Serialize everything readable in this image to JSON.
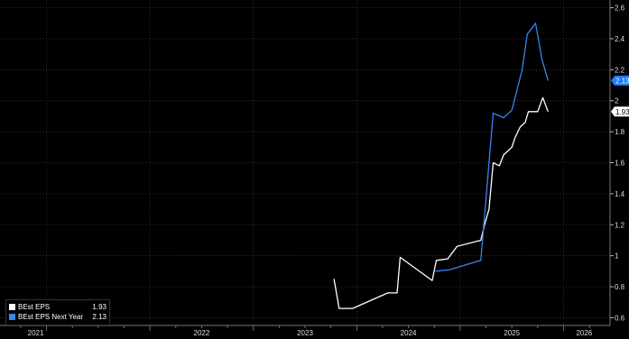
{
  "chart_data": {
    "type": "line",
    "title": "",
    "xlabel": "",
    "ylabel": "",
    "x_ticks": [
      "2021",
      "2022",
      "2023",
      "2024",
      "2025",
      "2026"
    ],
    "y_ticks": [
      "0.6",
      "0.8",
      "1",
      "1.2",
      "1.4",
      "1.6",
      "1.8",
      "2",
      "2.2",
      "2.4",
      "2.6"
    ],
    "ylim": [
      0.55,
      2.65
    ],
    "xlim": [
      2020.55,
      2026.45
    ],
    "grid": true,
    "legend_position": "bottom-left",
    "background": "#000000",
    "series": [
      {
        "name": "BEst EPS",
        "color": "#ffffff",
        "last_value": "1.93",
        "points": [
          [
            2023.78,
            0.85
          ],
          [
            2023.83,
            0.66
          ],
          [
            2023.96,
            0.66
          ],
          [
            2024.3,
            0.76
          ],
          [
            2024.39,
            0.76
          ],
          [
            2024.42,
            0.99
          ],
          [
            2024.73,
            0.84
          ],
          [
            2024.77,
            0.97
          ],
          [
            2024.88,
            0.98
          ],
          [
            2024.97,
            1.06
          ],
          [
            2025.2,
            1.1
          ],
          [
            2025.24,
            1.21
          ],
          [
            2025.28,
            1.3
          ],
          [
            2025.32,
            1.6
          ],
          [
            2025.38,
            1.58
          ],
          [
            2025.42,
            1.65
          ],
          [
            2025.5,
            1.7
          ],
          [
            2025.53,
            1.76
          ],
          [
            2025.58,
            1.83
          ],
          [
            2025.63,
            1.86
          ],
          [
            2025.66,
            1.93
          ],
          [
            2025.75,
            1.93
          ],
          [
            2025.8,
            2.02
          ],
          [
            2025.85,
            1.93
          ]
        ]
      },
      {
        "name": "BEst EPS Next Year",
        "color": "#3b82f6",
        "last_value": "2.13",
        "points": [
          [
            2024.76,
            0.9
          ],
          [
            2024.9,
            0.91
          ],
          [
            2025.2,
            0.97
          ],
          [
            2025.32,
            1.92
          ],
          [
            2025.42,
            1.89
          ],
          [
            2025.5,
            1.94
          ],
          [
            2025.6,
            2.2
          ],
          [
            2025.65,
            2.43
          ],
          [
            2025.73,
            2.5
          ],
          [
            2025.79,
            2.27
          ],
          [
            2025.85,
            2.13
          ]
        ]
      }
    ]
  },
  "legend": {
    "items": [
      {
        "label": "BEst EPS",
        "value": "1.93",
        "color": "#ffffff"
      },
      {
        "label": "BEst EPS Next Year",
        "value": "2.13",
        "color": "#3b82f6"
      }
    ]
  }
}
